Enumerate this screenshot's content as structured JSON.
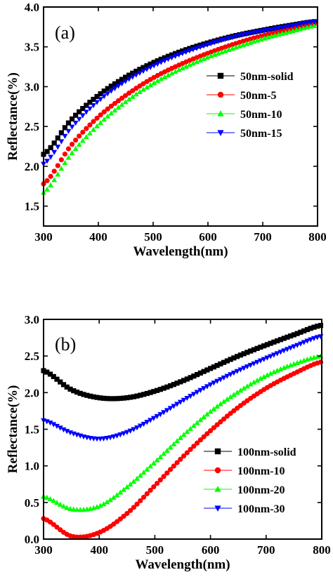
{
  "chart_data": [
    {
      "type": "scatter",
      "panel_label": "(a)",
      "xlabel": "Wavelength(nm)",
      "ylabel": "Reflectance(%)",
      "xlim": [
        300,
        800
      ],
      "ylim": [
        1.25,
        4.0
      ],
      "xticks": [
        300,
        400,
        500,
        600,
        700,
        800
      ],
      "yticks": [
        1.5,
        2.0,
        2.5,
        3.0,
        3.5,
        4.0
      ],
      "ytick_labels": [
        "1.5",
        "2.0",
        "2.5",
        "3.0",
        "3.5",
        "4.0"
      ],
      "grid": false,
      "legend_position": "center-right",
      "x": [
        300,
        350,
        400,
        450,
        500,
        550,
        600,
        650,
        700,
        750,
        800
      ],
      "series": [
        {
          "name": "50nm-solid",
          "marker": "square",
          "color": "#000000",
          "values": [
            2.15,
            2.58,
            2.89,
            3.12,
            3.3,
            3.44,
            3.55,
            3.64,
            3.71,
            3.77,
            3.82
          ]
        },
        {
          "name": "50nm-5",
          "marker": "circle",
          "color": "#ff0000",
          "values": [
            1.78,
            2.26,
            2.62,
            2.89,
            3.11,
            3.28,
            3.42,
            3.54,
            3.64,
            3.72,
            3.79
          ]
        },
        {
          "name": "50nm-10",
          "marker": "triangle-up",
          "color": "#00ff00",
          "values": [
            1.67,
            2.15,
            2.52,
            2.81,
            3.04,
            3.22,
            3.37,
            3.49,
            3.6,
            3.69,
            3.77
          ]
        },
        {
          "name": "50nm-15",
          "marker": "triangle-down",
          "color": "#0000ff",
          "values": [
            2.03,
            2.48,
            2.82,
            3.07,
            3.26,
            3.41,
            3.53,
            3.63,
            3.7,
            3.76,
            3.82
          ]
        }
      ]
    },
    {
      "type": "scatter",
      "panel_label": "(b)",
      "xlabel": "Wavelength(nm)",
      "ylabel": "Reflectance(%)",
      "xlim": [
        300,
        800
      ],
      "ylim": [
        0.0,
        3.0
      ],
      "xticks": [
        300,
        400,
        500,
        600,
        700,
        800
      ],
      "yticks": [
        0.0,
        0.5,
        1.0,
        1.5,
        2.0,
        2.5,
        3.0
      ],
      "ytick_labels": [
        "0.0",
        "0.5",
        "1.0",
        "1.5",
        "2.0",
        "2.5",
        "3.0"
      ],
      "grid": false,
      "legend_position": "bottom-right",
      "x": [
        300,
        350,
        400,
        450,
        500,
        550,
        600,
        650,
        700,
        750,
        800
      ],
      "series": [
        {
          "name": "100nm-solid",
          "marker": "square",
          "color": "#000000",
          "values": [
            2.3,
            2.04,
            1.93,
            1.93,
            2.02,
            2.16,
            2.33,
            2.5,
            2.65,
            2.79,
            2.92
          ]
        },
        {
          "name": "100nm-10",
          "marker": "circle",
          "color": "#ff0000",
          "values": [
            0.28,
            0.04,
            0.09,
            0.35,
            0.73,
            1.12,
            1.48,
            1.8,
            2.06,
            2.26,
            2.42
          ]
        },
        {
          "name": "100nm-20",
          "marker": "triangle-up",
          "color": "#00ff00",
          "values": [
            0.58,
            0.41,
            0.45,
            0.71,
            1.05,
            1.41,
            1.74,
            2.01,
            2.23,
            2.39,
            2.5
          ]
        },
        {
          "name": "100nm-30",
          "marker": "triangle-down",
          "color": "#0000ff",
          "values": [
            1.62,
            1.45,
            1.37,
            1.46,
            1.66,
            1.89,
            2.11,
            2.3,
            2.47,
            2.63,
            2.77
          ]
        }
      ]
    }
  ]
}
